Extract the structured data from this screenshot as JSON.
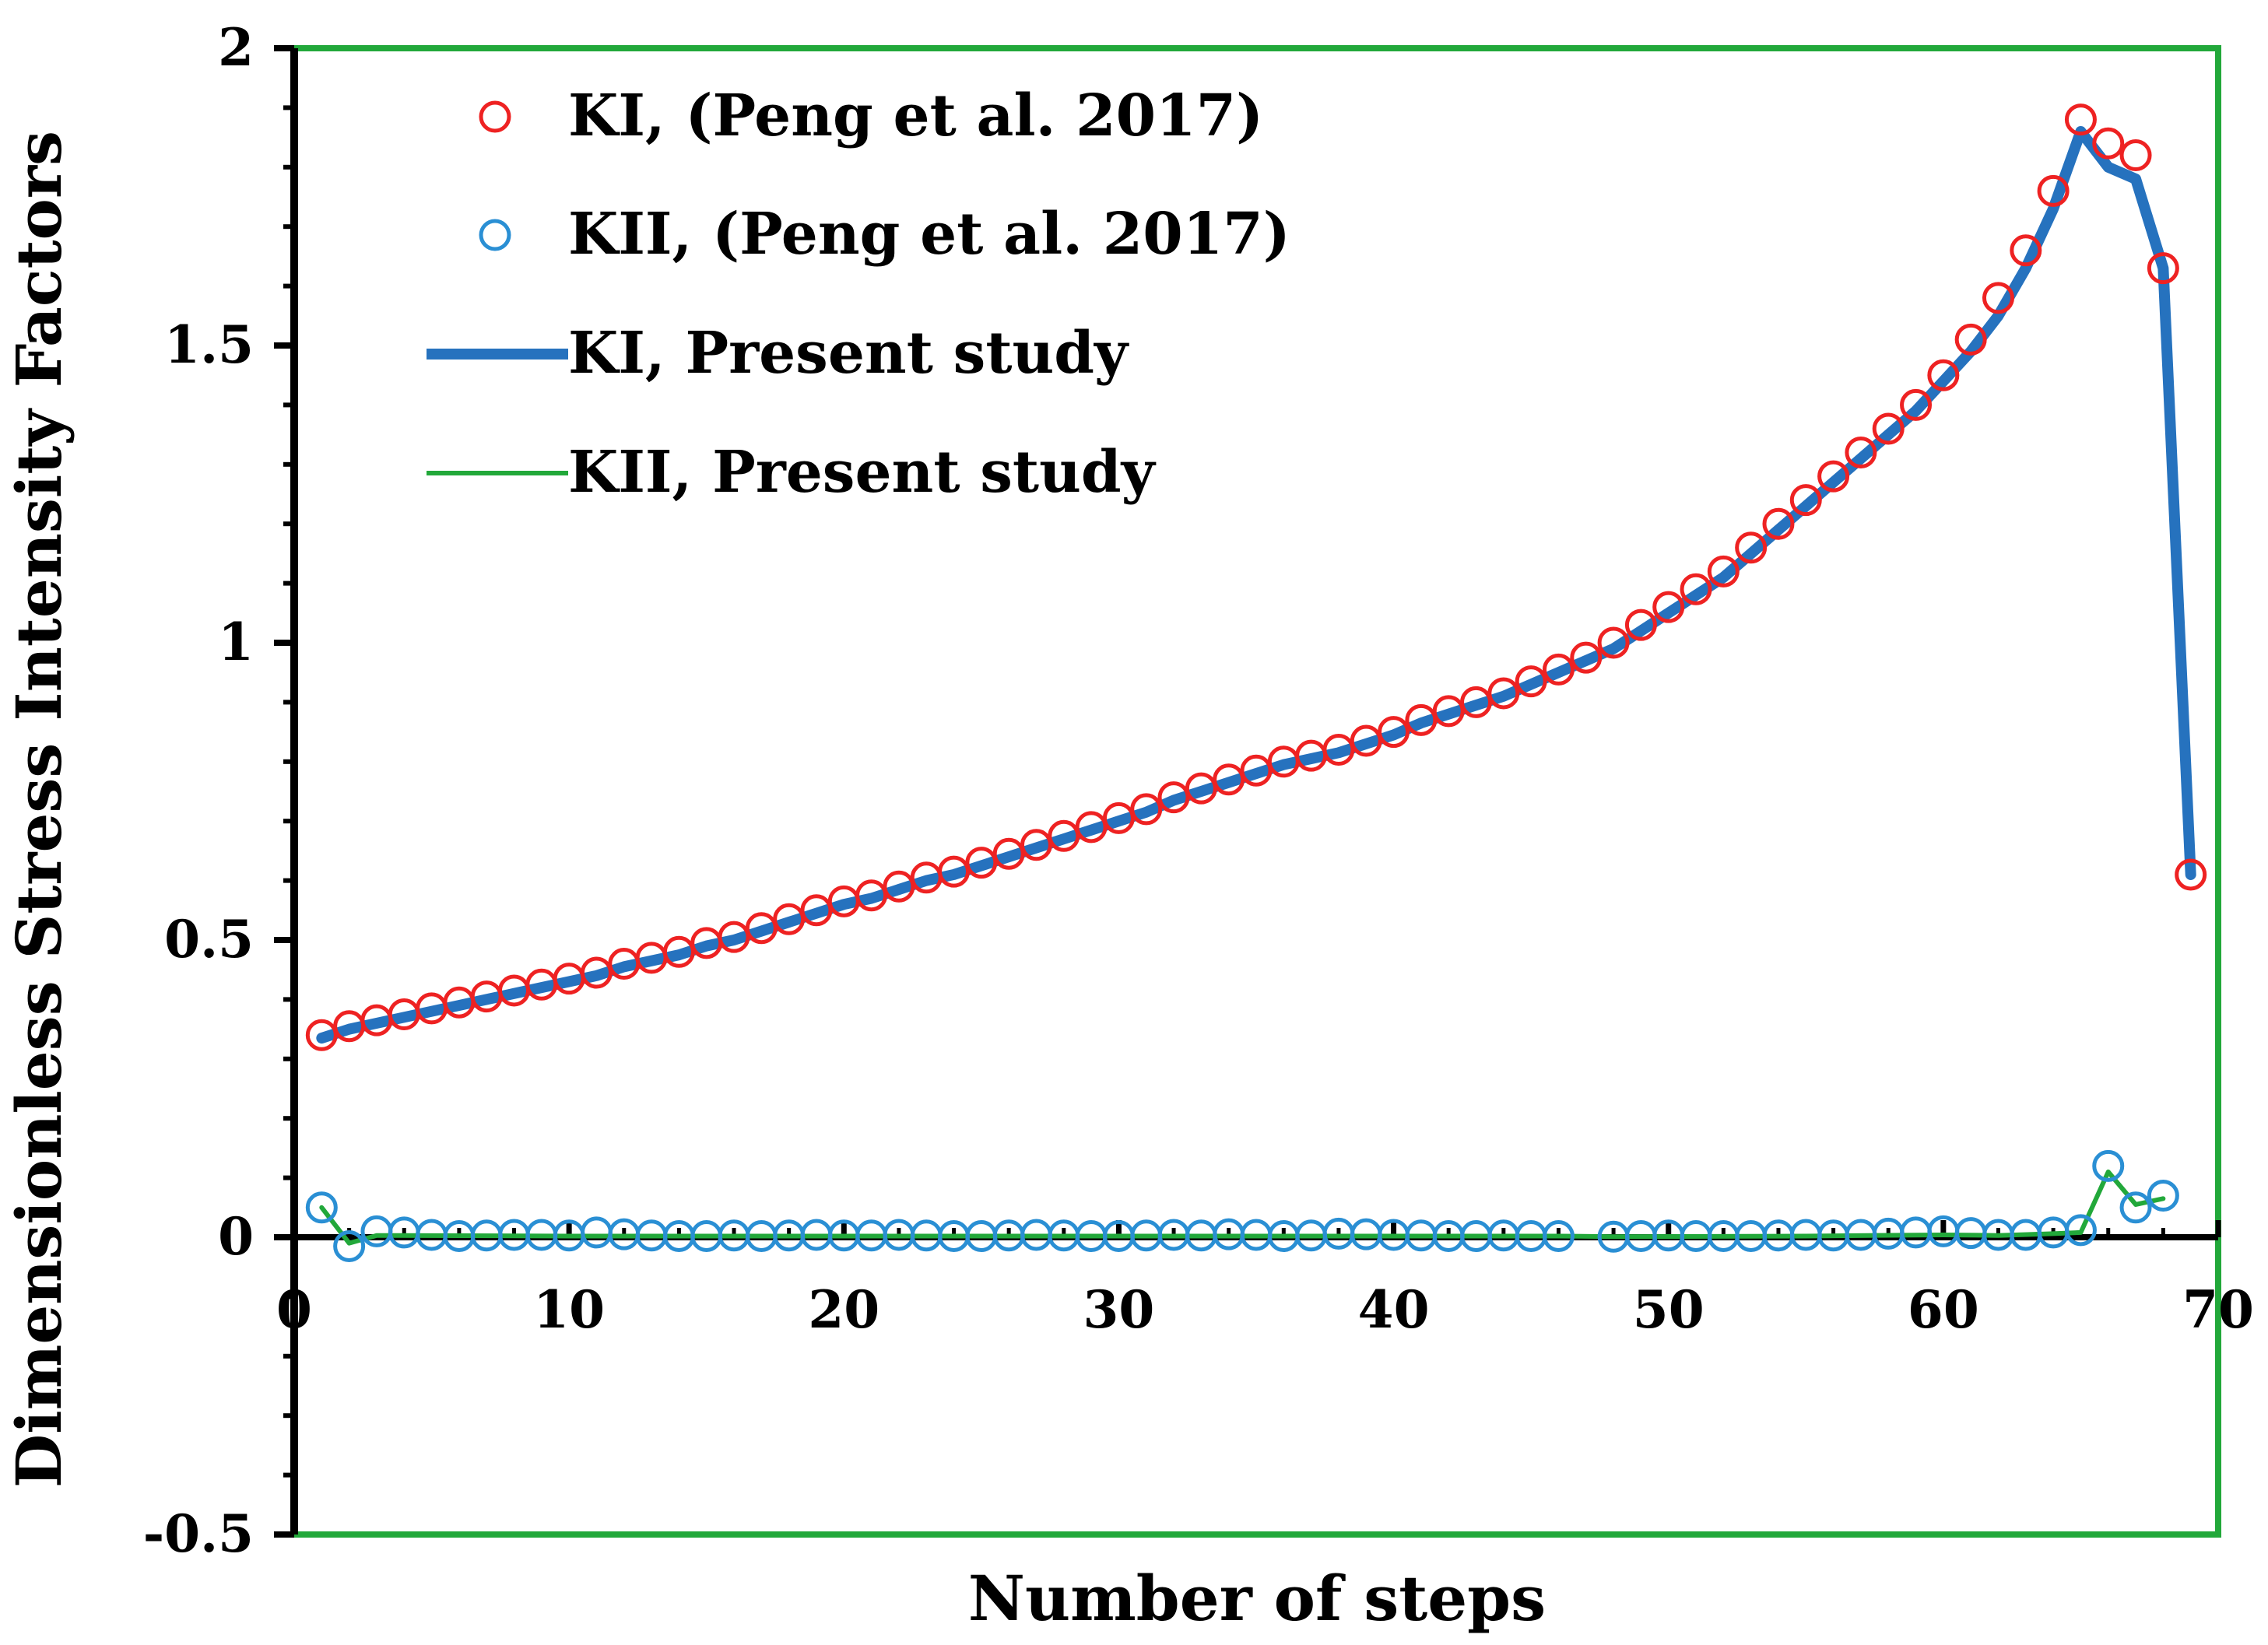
{
  "colors": {
    "ki_ref": "#ee2222",
    "kii_ref": "#2a8fd4",
    "ki_present": "#2672be",
    "kii_present": "#22a83a",
    "frame": "#22a83a",
    "axis": "#000000"
  },
  "chart_data": {
    "type": "scatter",
    "xlabel": "Number of steps",
    "ylabel": "Dimensionless Stress Intensity Factors",
    "xlim": [
      0,
      70
    ],
    "ylim": [
      -0.5,
      2
    ],
    "x_ticks": [
      "0",
      "10",
      "20",
      "30",
      "40",
      "50",
      "60",
      "70"
    ],
    "y_ticks": [
      "-0.5",
      "0",
      "0.5",
      "1",
      "1.5",
      "2"
    ],
    "grid": false,
    "legend_position": "top-left",
    "series": [
      {
        "name": "KI, (Peng et al. 2017)",
        "style": "markers",
        "color": "#ee2222",
        "x": [
          1,
          2,
          3,
          4,
          5,
          6,
          7,
          8,
          9,
          10,
          11,
          12,
          13,
          14,
          15,
          16,
          17,
          18,
          19,
          20,
          21,
          22,
          23,
          24,
          25,
          26,
          27,
          28,
          29,
          30,
          31,
          32,
          33,
          34,
          35,
          36,
          37,
          38,
          39,
          40,
          41,
          42,
          43,
          44,
          45,
          46,
          47,
          48,
          49,
          50,
          51,
          52,
          53,
          54,
          55,
          56,
          57,
          58,
          59,
          60,
          61,
          62,
          63,
          64,
          65,
          66,
          67,
          68,
          69
        ],
        "y": [
          0.34,
          0.355,
          0.365,
          0.375,
          0.385,
          0.395,
          0.405,
          0.415,
          0.425,
          0.435,
          0.445,
          0.46,
          0.47,
          0.48,
          0.495,
          0.505,
          0.52,
          0.535,
          0.55,
          0.565,
          0.575,
          0.59,
          0.605,
          0.615,
          0.63,
          0.645,
          0.66,
          0.675,
          0.69,
          0.705,
          0.72,
          0.74,
          0.755,
          0.77,
          0.785,
          0.8,
          0.81,
          0.82,
          0.835,
          0.85,
          0.87,
          0.885,
          0.9,
          0.915,
          0.935,
          0.955,
          0.975,
          1.0,
          1.03,
          1.06,
          1.09,
          1.12,
          1.16,
          1.2,
          1.24,
          1.28,
          1.32,
          1.36,
          1.4,
          1.45,
          1.51,
          1.58,
          1.66,
          1.76,
          1.88,
          1.84,
          1.82,
          1.63,
          0.61
        ]
      },
      {
        "name": "KII, (Peng et al. 2017)",
        "style": "markers",
        "color": "#2a8fd4",
        "x": [
          1,
          2,
          3,
          4,
          5,
          6,
          7,
          8,
          9,
          10,
          11,
          12,
          13,
          14,
          15,
          16,
          17,
          18,
          19,
          20,
          21,
          22,
          23,
          24,
          25,
          26,
          27,
          28,
          29,
          30,
          31,
          32,
          33,
          34,
          35,
          36,
          37,
          38,
          39,
          40,
          41,
          42,
          43,
          44,
          45,
          46,
          48,
          49,
          50,
          51,
          52,
          53,
          54,
          55,
          56,
          57,
          58,
          59,
          60,
          61,
          62,
          63,
          64,
          65,
          66,
          67,
          68
        ],
        "y": [
          0.05,
          -0.015,
          0.01,
          0.008,
          0.004,
          0.002,
          0.003,
          0.004,
          0.004,
          0.003,
          0.008,
          0.005,
          0.003,
          0.002,
          0.002,
          0.003,
          0.002,
          0.003,
          0.004,
          0.003,
          0.003,
          0.004,
          0.003,
          0.002,
          0.002,
          0.003,
          0.004,
          0.003,
          0.002,
          0.002,
          0.003,
          0.004,
          0.003,
          0.005,
          0.004,
          0.002,
          0.003,
          0.006,
          0.005,
          0.004,
          0.003,
          0.002,
          0.002,
          0.003,
          0.002,
          0.002,
          0.001,
          0.002,
          0.003,
          0.002,
          0.002,
          0.002,
          0.003,
          0.004,
          0.003,
          0.004,
          0.006,
          0.008,
          0.01,
          0.007,
          0.004,
          0.004,
          0.008,
          0.012,
          0.12,
          0.05,
          0.07
        ]
      },
      {
        "name": "KI, Present study",
        "style": "line",
        "color": "#2672be",
        "x": [
          1,
          2,
          3,
          4,
          5,
          6,
          7,
          8,
          9,
          10,
          11,
          12,
          13,
          14,
          15,
          16,
          17,
          18,
          19,
          20,
          21,
          22,
          23,
          24,
          25,
          26,
          27,
          28,
          29,
          30,
          31,
          32,
          33,
          34,
          35,
          36,
          37,
          38,
          39,
          40,
          41,
          42,
          43,
          44,
          45,
          46,
          47,
          48,
          49,
          50,
          51,
          52,
          53,
          54,
          55,
          56,
          57,
          58,
          59,
          60,
          61,
          62,
          63,
          64,
          65,
          66,
          67,
          68,
          69
        ],
        "y": [
          0.335,
          0.35,
          0.36,
          0.37,
          0.38,
          0.39,
          0.4,
          0.41,
          0.42,
          0.43,
          0.44,
          0.455,
          0.465,
          0.475,
          0.49,
          0.5,
          0.515,
          0.53,
          0.545,
          0.56,
          0.57,
          0.585,
          0.6,
          0.61,
          0.625,
          0.64,
          0.655,
          0.67,
          0.685,
          0.7,
          0.715,
          0.735,
          0.75,
          0.765,
          0.78,
          0.795,
          0.805,
          0.815,
          0.83,
          0.845,
          0.865,
          0.88,
          0.895,
          0.91,
          0.93,
          0.95,
          0.97,
          0.99,
          1.02,
          1.05,
          1.08,
          1.11,
          1.15,
          1.19,
          1.23,
          1.27,
          1.31,
          1.35,
          1.39,
          1.44,
          1.49,
          1.55,
          1.63,
          1.73,
          1.86,
          1.8,
          1.78,
          1.63,
          0.61
        ]
      },
      {
        "name": "KII, Present study",
        "style": "line",
        "color": "#22a83a",
        "x": [
          1,
          2,
          3,
          10,
          20,
          30,
          40,
          46,
          48,
          55,
          60,
          62,
          64,
          65,
          66,
          67,
          68
        ],
        "y": [
          0.05,
          -0.01,
          0.003,
          0.002,
          0.002,
          0.002,
          0.002,
          0.002,
          0.001,
          0.002,
          0.004,
          0.003,
          0.006,
          0.008,
          0.11,
          0.055,
          0.065
        ]
      }
    ]
  }
}
